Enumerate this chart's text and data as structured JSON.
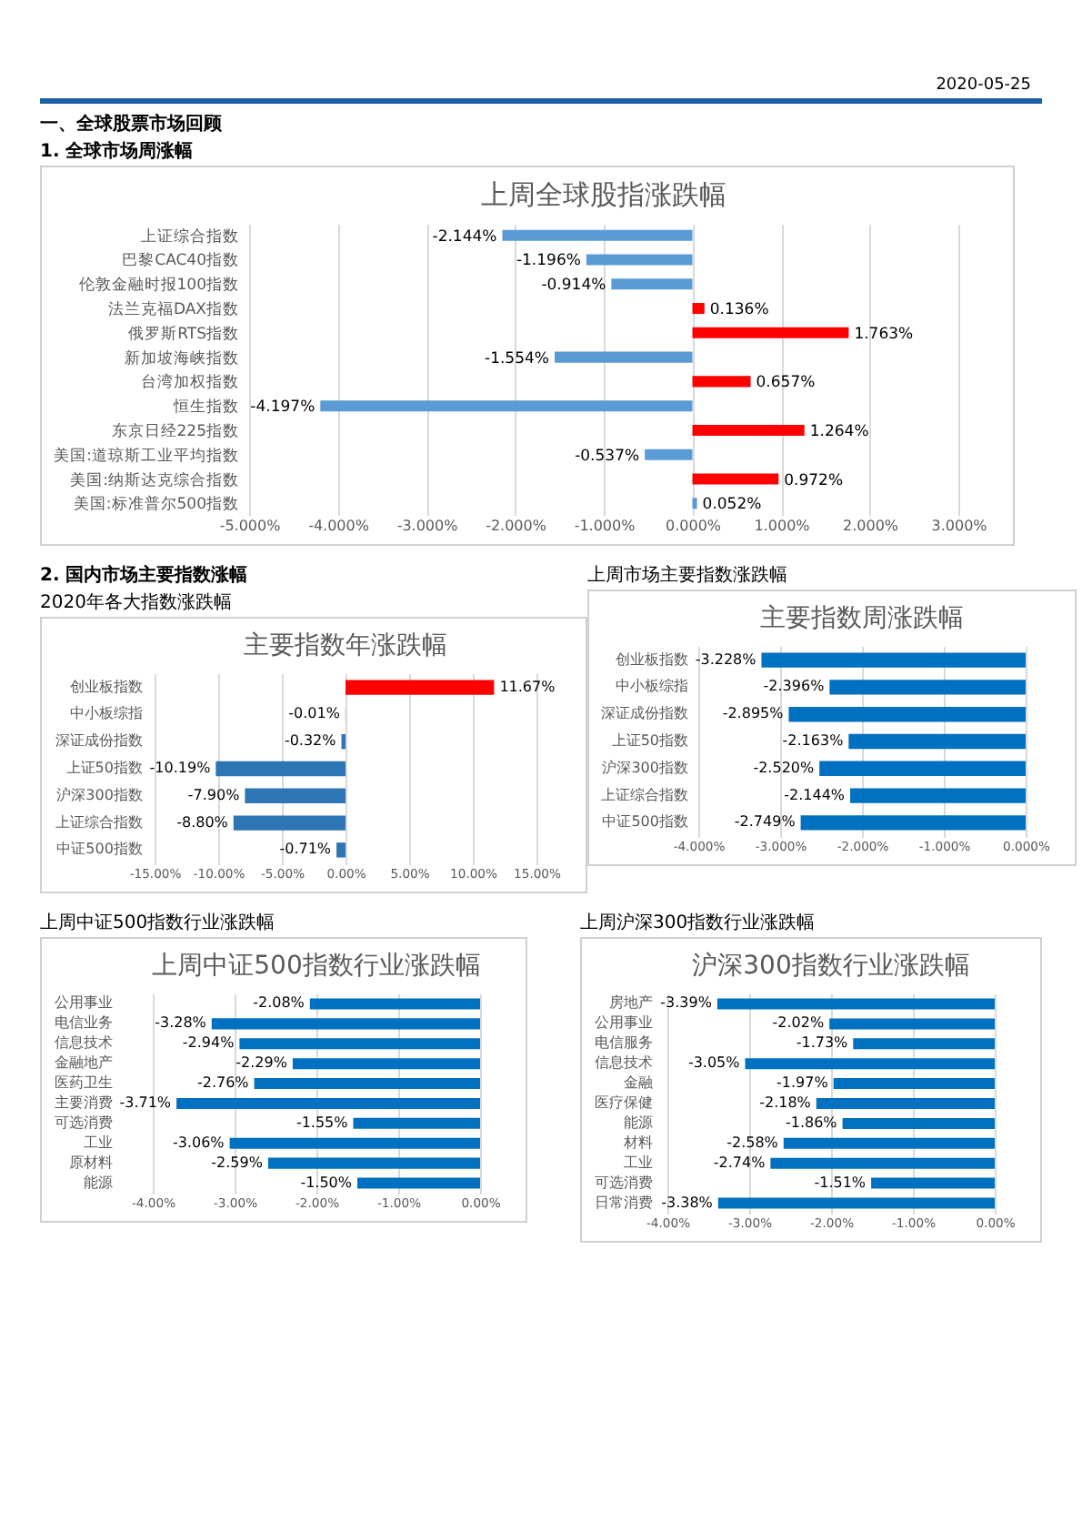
{
  "chart_data": [
    {
      "type": "bar",
      "orientation": "horizontal",
      "title": "上周全球股指涨跌幅",
      "annotations": [
        "2020-05-25",
        "一、全球股票市场回顾",
        "1. 全球市场周涨幅"
      ],
      "categories": [
        "上证综合指数",
        "巴黎CAC40指数",
        "伦敦金融时报100指数",
        "法兰克福DAX指数",
        "俄罗斯RTS指数",
        "新加坡海峡指数",
        "台湾加权指数",
        "恒生指数",
        "东京日经225指数",
        "美国:道琼斯工业平均指数",
        "美国:纳斯达克综合指数",
        "美国:标准普尔500指数"
      ],
      "values": [
        -2.144,
        -1.196,
        -0.914,
        0.136,
        1.763,
        -1.554,
        0.657,
        -4.197,
        1.264,
        -0.537,
        0.972,
        0.052
      ],
      "colors": [
        "#5b9bd5",
        "#5b9bd5",
        "#5b9bd5",
        "#ff0000",
        "#ff0000",
        "#5b9bd5",
        "#ff0000",
        "#5b9bd5",
        "#ff0000",
        "#5b9bd5",
        "#ff0000",
        "#5b9bd5"
      ],
      "value_labels": [
        "-2.144%",
        "-1.196%",
        "-0.914%",
        "0.136%",
        "1.763%",
        "-1.554%",
        "0.657%",
        "-4.197%",
        "1.264%",
        "-0.537%",
        "0.972%",
        "0.052%"
      ],
      "xlim": [
        -5,
        3
      ],
      "xticks": [
        {
          "value": -5,
          "label": "-5.000%"
        },
        {
          "value": -4,
          "label": "-4.000%"
        },
        {
          "value": -3,
          "label": "-3.000%"
        },
        {
          "value": -2,
          "label": "-2.000%"
        },
        {
          "value": -1,
          "label": "-1.000%"
        },
        {
          "value": 0,
          "label": "0.000%"
        },
        {
          "value": 1,
          "label": "1.000%"
        },
        {
          "value": 2,
          "label": "2.000%"
        },
        {
          "value": 3,
          "label": "3.000%"
        }
      ],
      "grid": "x"
    },
    {
      "type": "bar",
      "orientation": "horizontal",
      "title": "主要指数年涨跌幅",
      "subtitle": "2020年各大指数涨跌幅",
      "annotations": [
        "2. 国内市场主要指数涨幅"
      ],
      "categories": [
        "创业板指数",
        "中小板综指",
        "深证成份指数",
        "上证50指数",
        "沪深300指数",
        "上证综合指数",
        "中证500指数"
      ],
      "values": [
        11.67,
        -0.01,
        -0.32,
        -10.19,
        -7.9,
        -8.8,
        -0.71
      ],
      "colors": [
        "#ff0000",
        "#2e75b6",
        "#2e75b6",
        "#2e75b6",
        "#2e75b6",
        "#2e75b6",
        "#2e75b6"
      ],
      "value_labels": [
        "11.67%",
        "-0.01%",
        "-0.32%",
        "-10.19%",
        "-7.90%",
        "-8.80%",
        "-0.71%"
      ],
      "xlim": [
        -15,
        15
      ],
      "xticks": [
        {
          "value": -15,
          "label": "-15.00%"
        },
        {
          "value": -10,
          "label": "-10.00%"
        },
        {
          "value": -5,
          "label": "-5.00%"
        },
        {
          "value": 0,
          "label": "0.00%"
        },
        {
          "value": 5,
          "label": "5.00%"
        },
        {
          "value": 10,
          "label": "10.00%"
        },
        {
          "value": 15,
          "label": "15.00%"
        }
      ],
      "grid": "x"
    },
    {
      "type": "bar",
      "orientation": "horizontal",
      "title": "主要指数周涨跌幅",
      "subtitle": "上周市场主要指数涨跌幅",
      "categories": [
        "创业板指数",
        "中小板综指",
        "深证成份指数",
        "上证50指数",
        "沪深300指数",
        "上证综合指数",
        "中证500指数"
      ],
      "values": [
        -3.228,
        -2.396,
        -2.895,
        -2.163,
        -2.52,
        -2.144,
        -2.749
      ],
      "colors": [
        "#0070c0",
        "#0070c0",
        "#0070c0",
        "#0070c0",
        "#0070c0",
        "#0070c0",
        "#0070c0"
      ],
      "value_labels": [
        "-3.228%",
        "-2.396%",
        "-2.895%",
        "-2.163%",
        "-2.520%",
        "-2.144%",
        "-2.749%"
      ],
      "xlim": [
        -4,
        0
      ],
      "xticks": [
        {
          "value": -4,
          "label": "-4.000%"
        },
        {
          "value": -3,
          "label": "-3.000%"
        },
        {
          "value": -2,
          "label": "-2.000%"
        },
        {
          "value": -1,
          "label": "-1.000%"
        },
        {
          "value": 0,
          "label": "0.000%"
        }
      ],
      "grid": "x"
    },
    {
      "type": "bar",
      "orientation": "horizontal",
      "title": "上周中证500指数行业涨跌幅",
      "subtitle": "上周中证500指数行业涨跌幅",
      "categories": [
        "公用事业",
        "电信业务",
        "信息技术",
        "金融地产",
        "医药卫生",
        "主要消费",
        "可选消费",
        "工业",
        "原材料",
        "能源"
      ],
      "values": [
        -2.08,
        -3.28,
        -2.94,
        -2.29,
        -2.76,
        -3.71,
        -1.55,
        -3.06,
        -2.59,
        -1.5
      ],
      "colors": [
        "#0070c0",
        "#0070c0",
        "#0070c0",
        "#0070c0",
        "#0070c0",
        "#0070c0",
        "#0070c0",
        "#0070c0",
        "#0070c0",
        "#0070c0"
      ],
      "value_labels": [
        "-2.08%",
        "-3.28%",
        "-2.94%",
        "-2.29%",
        "-2.76%",
        "-3.71%",
        "-1.55%",
        "-3.06%",
        "-2.59%",
        "-1.50%"
      ],
      "xlim": [
        -4,
        0
      ],
      "xticks": [
        {
          "value": -4,
          "label": "-4.00%"
        },
        {
          "value": -3,
          "label": "-3.00%"
        },
        {
          "value": -2,
          "label": "-2.00%"
        },
        {
          "value": -1,
          "label": "-1.00%"
        },
        {
          "value": 0,
          "label": "0.00%"
        }
      ],
      "grid": "x"
    },
    {
      "type": "bar",
      "orientation": "horizontal",
      "title": "沪深300指数行业涨跌幅",
      "subtitle": "上周沪深300指数行业涨跌幅",
      "categories": [
        "房地产",
        "公用事业",
        "电信服务",
        "信息技术",
        "金融",
        "医疗保健",
        "能源",
        "材料",
        "工业",
        "可选消费",
        "日常消费"
      ],
      "values": [
        -3.39,
        -2.02,
        -1.73,
        -3.05,
        -1.97,
        -2.18,
        -1.86,
        -2.58,
        -2.74,
        -1.51,
        -3.38
      ],
      "colors": [
        "#0070c0",
        "#0070c0",
        "#0070c0",
        "#0070c0",
        "#0070c0",
        "#0070c0",
        "#0070c0",
        "#0070c0",
        "#0070c0",
        "#0070c0",
        "#0070c0"
      ],
      "value_labels": [
        "-3.39%",
        "-2.02%",
        "-1.73%",
        "-3.05%",
        "-1.97%",
        "-2.18%",
        "-1.86%",
        "-2.58%",
        "-2.74%",
        "-1.51%",
        "-3.38%"
      ],
      "xlim": [
        -4,
        0
      ],
      "xticks": [
        {
          "value": -4,
          "label": "-4.00%"
        },
        {
          "value": -3,
          "label": "-3.00%"
        },
        {
          "value": -2,
          "label": "-2.00%"
        },
        {
          "value": -1,
          "label": "-1.00%"
        },
        {
          "value": 0,
          "label": "0.00%"
        }
      ],
      "grid": "x"
    }
  ]
}
